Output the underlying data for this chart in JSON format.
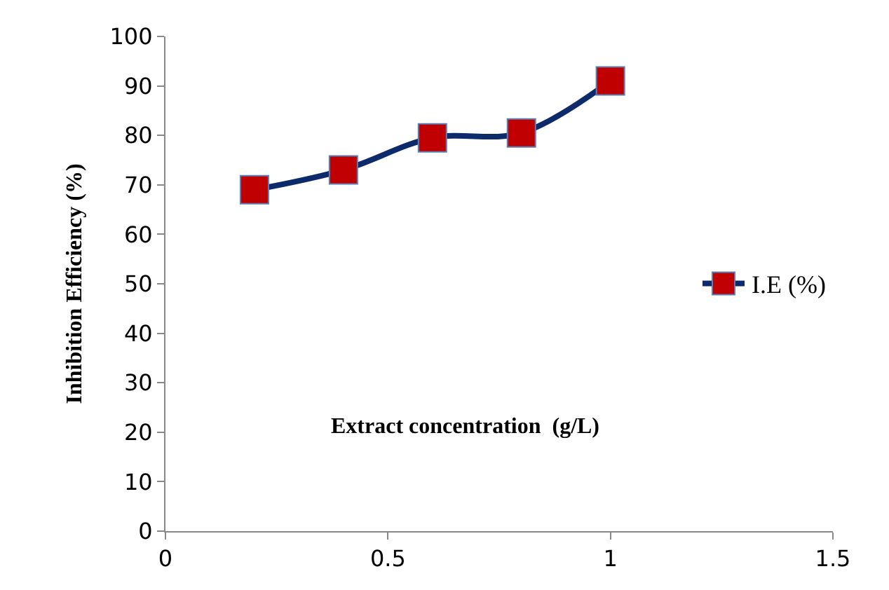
{
  "chart_data": {
    "type": "line",
    "xlabel": "Extract concentration  (g/L)",
    "ylabel": "Inhibition Efficiency (%)",
    "x": [
      0.2,
      0.4,
      0.6,
      0.8,
      1.0
    ],
    "series": [
      {
        "name": "I.E (%)",
        "color": "#0d2a6b",
        "values": [
          69,
          73,
          79.5,
          80.5,
          91
        ]
      }
    ],
    "xlim": [
      0,
      1.5
    ],
    "xticks": [
      0,
      0.5,
      1,
      1.5
    ],
    "ylim": [
      0,
      100
    ],
    "yticks": [
      0,
      10,
      20,
      30,
      40,
      50,
      60,
      70,
      80,
      90,
      100
    ],
    "legend": "right",
    "marker": "square",
    "line_style": "solid"
  }
}
